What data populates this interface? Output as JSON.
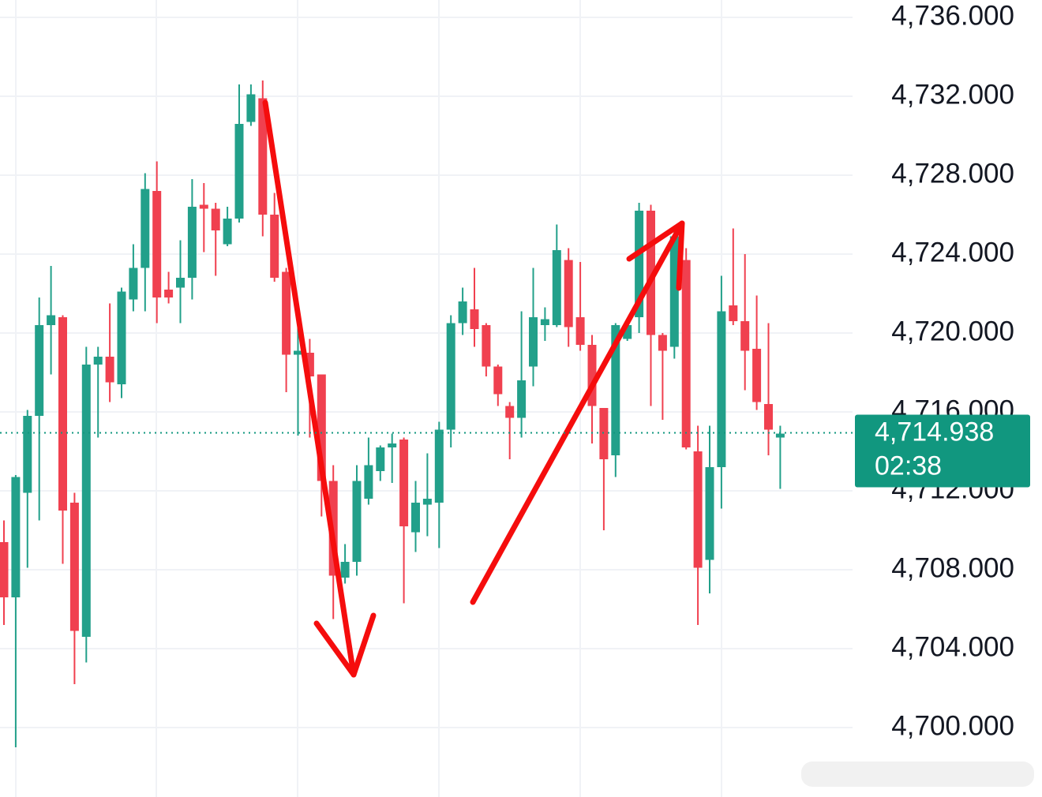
{
  "chart_data": {
    "type": "candlestick",
    "ylim": [
      4696.48,
      4736.88
    ],
    "yticks": [
      {
        "value": 4736,
        "label": "4,736.000"
      },
      {
        "value": 4732,
        "label": "4,732.000"
      },
      {
        "value": 4728,
        "label": "4,728.000"
      },
      {
        "value": 4724,
        "label": "4,724.000"
      },
      {
        "value": 4720,
        "label": "4,720.000"
      },
      {
        "value": 4716,
        "label": "4,716.000"
      },
      {
        "value": 4712,
        "label": "4,712.000"
      },
      {
        "value": 4708,
        "label": "4,708.000"
      },
      {
        "value": 4704,
        "label": "4,704.000"
      },
      {
        "value": 4700,
        "label": "4,700.000"
      }
    ],
    "grid": true,
    "up_color": "#22a08a",
    "down_color": "#f0404f",
    "open": [
      4709.4,
      4706.6,
      4711.9,
      4715.8,
      4720.4,
      4720.8,
      4711.4,
      4704.6,
      4718.4,
      4718.8,
      4717.4,
      4721.7,
      4723.3,
      4727.2,
      4722.2,
      4722.3,
      4722.8,
      4726.5,
      4726.3,
      4724.5,
      4725.8,
      4730.7,
      4731.9,
      4726.0,
      4723.1,
      4718.9,
      4719.0,
      4717.9,
      4712.5,
      4707.6,
      4708.4,
      4711.6,
      4713.0,
      4714.2,
      4714.6,
      4709.9,
      4711.3,
      4711.4,
      4715.1,
      4720.5,
      4721.2,
      4720.4,
      4718.3,
      4716.3,
      4715.7,
      4718.3,
      4720.4,
      4720.4,
      4723.7,
      4720.8,
      4719.4,
      4716.2,
      4713.8,
      4719.7,
      4720.8,
      4726.2,
      4719.9,
      4719.3,
      4723.7,
      4714.0,
      4708.5,
      4713.2,
      4721.4,
      4720.6,
      4719.2,
      4716.4,
      4714.7
    ],
    "high": [
      4710.5,
      4712.8,
      4716.1,
      4721.8,
      4723.4,
      4720.9,
      4711.9,
      4719.3,
      4719.3,
      4721.5,
      4722.3,
      4724.5,
      4728.1,
      4728.7,
      4723.1,
      4724.7,
      4727.8,
      4727.6,
      4726.6,
      4726.4,
      4732.6,
      4732.6,
      4732.8,
      4727.1,
      4723.3,
      4720.6,
      4719.7,
      4717.9,
      4713.3,
      4709.3,
      4713.3,
      4714.7,
      4714.3,
      4714.9,
      4714.7,
      4712.5,
      4713.9,
      4715.5,
      4720.9,
      4722.3,
      4723.3,
      4720.5,
      4718.4,
      4716.5,
      4721.1,
      4723.3,
      4721.3,
      4725.5,
      4724.3,
      4723.6,
      4719.9,
      4716.2,
      4720.5,
      4720.5,
      4726.6,
      4726.5,
      4720.0,
      4725.3,
      4724.3,
      4715.3,
      4715.3,
      4722.9,
      4725.3,
      4724.0,
      4721.9,
      4720.5,
      4715.3
    ],
    "low": [
      4705.2,
      4699.0,
      4708.1,
      4710.5,
      4717.9,
      4708.3,
      4702.2,
      4703.3,
      4714.7,
      4716.5,
      4716.7,
      4721.1,
      4721.1,
      4720.5,
      4721.5,
      4720.5,
      4721.7,
      4724.1,
      4722.9,
      4724.4,
      4725.6,
      4730.5,
      4724.9,
      4722.6,
      4717.0,
      4714.8,
      4714.7,
      4710.7,
      4705.5,
      4707.3,
      4707.7,
      4711.3,
      4712.5,
      4712.4,
      4706.3,
      4708.9,
      4709.7,
      4709.1,
      4714.2,
      4719.9,
      4719.3,
      4717.8,
      4716.3,
      4713.6,
      4714.7,
      4717.3,
      4719.6,
      4720.3,
      4719.3,
      4719.1,
      4714.4,
      4710.0,
      4712.7,
      4719.6,
      4720.0,
      4716.3,
      4715.6,
      4718.7,
      4714.1,
      4705.2,
      4706.8,
      4711.1,
      4720.4,
      4717.1,
      4716.1,
      4713.8,
      4712.1
    ],
    "close": [
      4706.6,
      4712.7,
      4715.8,
      4720.4,
      4720.9,
      4711.0,
      4704.9,
      4718.4,
      4718.8,
      4717.5,
      4722.1,
      4723.3,
      4727.3,
      4721.8,
      4721.8,
      4722.8,
      4726.4,
      4726.3,
      4725.2,
      4725.8,
      4730.6,
      4732.1,
      4726.0,
      4722.8,
      4718.9,
      4719.1,
      4717.8,
      4712.5,
      4707.7,
      4708.4,
      4712.5,
      4713.3,
      4714.2,
      4714.4,
      4710.2,
      4711.4,
      4711.6,
      4715.1,
      4720.5,
      4721.6,
      4720.2,
      4718.3,
      4716.9,
      4715.7,
      4717.6,
      4720.8,
      4720.7,
      4724.2,
      4720.3,
      4719.4,
      4716.3,
      4713.6,
      4720.4,
      4720.4,
      4726.2,
      4719.9,
      4719.1,
      4724.9,
      4714.2,
      4708.1,
      4713.2,
      4721.1,
      4720.6,
      4719.1,
      4716.5,
      4715.1,
      4714.9
    ],
    "last_price": {
      "value": 4714.938,
      "label": "4,714.938"
    },
    "countdown": "02:38",
    "price_color": "#11977f"
  }
}
